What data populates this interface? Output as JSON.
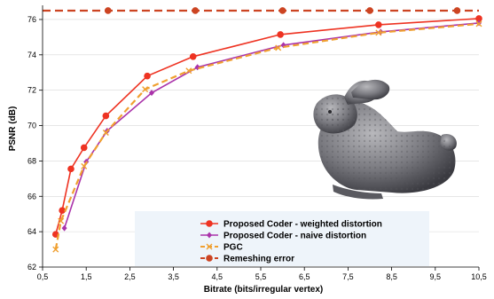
{
  "chart_data": {
    "type": "line",
    "xlabel": "Bitrate (bits/irregular vertex)",
    "ylabel": "PSNR (dB)",
    "xlim": [
      0.5,
      10.5
    ],
    "ylim": [
      62,
      76.8
    ],
    "xticks": [
      0.5,
      1.5,
      2.5,
      3.5,
      4.5,
      5.5,
      6.5,
      7.5,
      8.5,
      9.5,
      10.5
    ],
    "xtick_labels": [
      "0,5",
      "1,5",
      "2,5",
      "3,5",
      "4,5",
      "5,5",
      "6,5",
      "7,5",
      "8,5",
      "9,5",
      "10,5"
    ],
    "yticks": [
      62,
      64,
      66,
      68,
      70,
      72,
      74,
      76
    ],
    "ytick_labels": [
      "62",
      "64",
      "66",
      "68",
      "70",
      "72",
      "74",
      "76"
    ],
    "grid": "horizontal",
    "legend_position": "bottom-center",
    "series": [
      {
        "name": "Proposed Coder - weighted distortion",
        "color": "#ee3322",
        "marker": "circle",
        "style": "solid",
        "x": [
          0.8,
          0.95,
          1.15,
          1.45,
          1.95,
          2.9,
          3.95,
          5.95,
          8.2,
          10.5
        ],
        "y": [
          63.85,
          65.2,
          67.55,
          68.75,
          70.55,
          72.8,
          73.9,
          75.15,
          75.7,
          76.05
        ]
      },
      {
        "name": "Proposed Coder - naive distortion",
        "color": "#aa33aa",
        "marker": "diamond",
        "style": "solid",
        "x": [
          1.0,
          1.5,
          1.98,
          3.0,
          4.05,
          6.02,
          8.25,
          10.5
        ],
        "y": [
          64.2,
          67.95,
          69.7,
          71.85,
          73.3,
          74.55,
          75.3,
          75.8
        ]
      },
      {
        "name": "PGC",
        "color": "#f0a030",
        "marker": "x",
        "style": "dashed",
        "x": [
          0.8,
          0.92,
          1.45,
          1.95,
          2.85,
          3.85,
          5.9,
          8.2,
          10.5
        ],
        "y": [
          63.0,
          64.6,
          67.7,
          69.6,
          72.05,
          73.1,
          74.4,
          75.25,
          75.75
        ]
      },
      {
        "name": "Remeshing error",
        "color": "#cc4422",
        "marker": "circle",
        "style": "dashed",
        "x": [
          0.5,
          2.0,
          4.0,
          6.0,
          8.0,
          10.0,
          10.5
        ],
        "y": [
          76.5,
          76.5,
          76.5,
          76.5,
          76.5,
          76.5,
          76.5
        ]
      }
    ]
  },
  "image": {
    "icon": "bunny-3d-model"
  }
}
